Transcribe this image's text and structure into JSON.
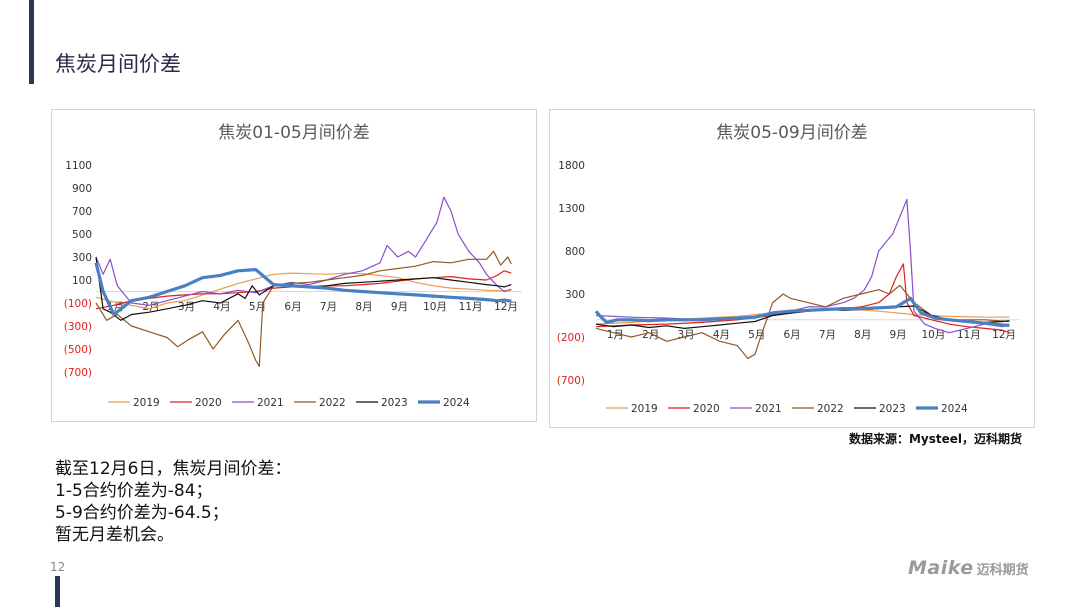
{
  "page": {
    "title": "焦炭月间价差",
    "source": "数据来源：Mysteel，迈科期货",
    "summary": [
      "截至12月6日，焦炭月间价差：",
      "1-5合约价差为-84；",
      "5-9合约价差为-64.5；",
      "暂无月差机会。"
    ],
    "page_number": "12",
    "logo_text": "Maike",
    "logo_cn": "迈科期货"
  },
  "chart_data": [
    {
      "type": "line",
      "title": "焦炭01-05月间价差",
      "x_tick_labels": [
        "1月",
        "2月",
        "3月",
        "4月",
        "5月",
        "6月",
        "7月",
        "8月",
        "9月",
        "10月",
        "11月",
        "12月"
      ],
      "y_ticks": [
        {
          "value": 1100,
          "label": "1100"
        },
        {
          "value": 900,
          "label": "900"
        },
        {
          "value": 700,
          "label": "700"
        },
        {
          "value": 500,
          "label": "500"
        },
        {
          "value": 300,
          "label": "300"
        },
        {
          "value": 100,
          "label": "100"
        },
        {
          "value": -100,
          "label": "(100)"
        },
        {
          "value": -300,
          "label": "(300)"
        },
        {
          "value": -500,
          "label": "(500)"
        },
        {
          "value": -700,
          "label": "(700)"
        }
      ],
      "ylim": [
        -700,
        1100
      ],
      "legend_position": "bottom",
      "series": [
        {
          "name": "2019",
          "color": "#ed9a4d",
          "width": 1.2,
          "x": [
            0,
            0.5,
            1,
            1.5,
            2,
            2.5,
            3,
            3.5,
            4,
            4.5,
            5,
            5.5,
            6,
            6.5,
            7,
            7.5,
            8,
            8.5,
            9,
            9.5,
            10,
            10.5,
            11,
            11.5,
            11.7
          ],
          "y": [
            -50,
            -90,
            -120,
            -150,
            -100,
            -80,
            -30,
            20,
            70,
            110,
            150,
            160,
            155,
            150,
            160,
            155,
            140,
            120,
            80,
            50,
            30,
            20,
            10,
            5,
            10
          ]
        },
        {
          "name": "2020",
          "color": "#e0201b",
          "width": 1.2,
          "x": [
            0,
            0.5,
            1,
            1.5,
            2,
            2.5,
            3,
            3.5,
            4,
            4.5,
            5,
            5.5,
            6,
            6.5,
            7,
            7.5,
            8,
            8.5,
            9,
            9.5,
            10,
            10.5,
            11,
            11.3,
            11.5,
            11.7
          ],
          "y": [
            -150,
            -120,
            -80,
            -60,
            -40,
            -30,
            -20,
            -20,
            -10,
            0,
            30,
            40,
            40,
            50,
            50,
            60,
            70,
            90,
            110,
            120,
            130,
            110,
            100,
            140,
            180,
            160
          ]
        },
        {
          "name": "2021",
          "color": "#8a4fc7",
          "width": 1.2,
          "x": [
            0,
            0.2,
            0.4,
            0.6,
            1,
            1.5,
            2,
            2.5,
            3,
            3.5,
            4,
            4.5,
            5,
            5.5,
            6,
            6.5,
            7,
            7.5,
            8,
            8.2,
            8.5,
            8.8,
            9,
            9.3,
            9.6,
            9.8,
            10,
            10.2,
            10.5,
            10.8,
            11,
            11.3,
            11.5,
            11.7
          ],
          "y": [
            300,
            150,
            280,
            50,
            -100,
            -120,
            -80,
            -40,
            0,
            -20,
            10,
            -10,
            50,
            80,
            60,
            100,
            150,
            180,
            250,
            400,
            300,
            350,
            300,
            450,
            600,
            820,
            700,
            500,
            350,
            250,
            150,
            50,
            0,
            20
          ]
        },
        {
          "name": "2022",
          "color": "#8f5b25",
          "width": 1.2,
          "x": [
            0,
            0.3,
            0.6,
            1,
            1.5,
            2,
            2.3,
            2.6,
            3,
            3.3,
            3.6,
            4,
            4.3,
            4.5,
            4.6,
            4.7,
            5,
            5.5,
            6,
            6.5,
            7,
            7.5,
            8,
            8.5,
            9,
            9.5,
            10,
            10.5,
            11,
            11.2,
            11.4,
            11.6,
            11.7
          ],
          "y": [
            -100,
            -250,
            -200,
            -300,
            -350,
            -400,
            -480,
            -420,
            -350,
            -500,
            -380,
            -250,
            -450,
            -600,
            -650,
            -100,
            50,
            70,
            80,
            100,
            120,
            140,
            180,
            200,
            220,
            260,
            250,
            280,
            280,
            350,
            230,
            300,
            240
          ]
        },
        {
          "name": "2023",
          "color": "#111111",
          "width": 1.2,
          "x": [
            0,
            0.2,
            0.4,
            0.7,
            1,
            1.5,
            2,
            2.5,
            3,
            3.5,
            4,
            4.2,
            4.4,
            4.6,
            5,
            5.5,
            6,
            6.5,
            7,
            7.5,
            8,
            8.5,
            9,
            9.5,
            10,
            10.5,
            11,
            11.3,
            11.5,
            11.7
          ],
          "y": [
            300,
            -150,
            -180,
            -250,
            -200,
            -180,
            -150,
            -120,
            -80,
            -100,
            -20,
            -60,
            50,
            -30,
            50,
            60,
            40,
            50,
            70,
            80,
            90,
            100,
            110,
            120,
            100,
            80,
            60,
            50,
            40,
            60
          ]
        },
        {
          "name": "2024",
          "color": "#4a7fc1",
          "width": 3.2,
          "x": [
            0,
            0.2,
            0.5,
            1,
            1.5,
            2,
            2.5,
            3,
            3.5,
            4,
            4.5,
            5,
            5.5,
            6,
            6.5,
            7,
            7.5,
            8,
            8.5,
            9,
            9.5,
            10,
            10.5,
            11,
            11.3,
            11.5,
            11.7
          ],
          "y": [
            250,
            0,
            -200,
            -80,
            -50,
            0,
            50,
            120,
            140,
            180,
            190,
            60,
            50,
            40,
            30,
            10,
            0,
            -10,
            -20,
            -30,
            -40,
            -50,
            -60,
            -70,
            -80,
            -75,
            -84
          ]
        }
      ]
    },
    {
      "type": "line",
      "title": "焦炭05-09月间价差",
      "x_tick_labels": [
        "1月",
        "2月",
        "3月",
        "4月",
        "5月",
        "6月",
        "7月",
        "8月",
        "9月",
        "10月",
        "11月",
        "12月"
      ],
      "y_ticks": [
        {
          "value": 1800,
          "label": "1800"
        },
        {
          "value": 1300,
          "label": "1300"
        },
        {
          "value": 800,
          "label": "800"
        },
        {
          "value": 300,
          "label": "300"
        },
        {
          "value": -200,
          "label": "(200)"
        },
        {
          "value": -700,
          "label": "(700)"
        }
      ],
      "ylim": [
        -700,
        1800
      ],
      "legend_position": "bottom",
      "series": [
        {
          "name": "2019",
          "color": "#ed9a4d",
          "width": 1.2,
          "x": [
            0,
            1,
            2,
            3,
            4,
            5,
            6,
            7,
            8,
            9,
            10,
            11,
            11.7
          ],
          "y": [
            -50,
            -30,
            0,
            20,
            40,
            80,
            120,
            130,
            100,
            60,
            40,
            30,
            30
          ]
        },
        {
          "name": "2020",
          "color": "#e0201b",
          "width": 1.2,
          "x": [
            0,
            1,
            2,
            3,
            4,
            5,
            6,
            7,
            7.5,
            8,
            8.3,
            8.5,
            8.7,
            8.8,
            9,
            9.5,
            10,
            10.5,
            11,
            11.5,
            11.7
          ],
          "y": [
            -80,
            -60,
            -50,
            -30,
            0,
            50,
            100,
            130,
            150,
            200,
            300,
            500,
            650,
            200,
            50,
            0,
            -50,
            -80,
            -100,
            -120,
            -150
          ]
        },
        {
          "name": "2021",
          "color": "#8a4fc7",
          "width": 1.2,
          "x": [
            0,
            1,
            2,
            3,
            4,
            5,
            5.5,
            6,
            6.5,
            7,
            7.3,
            7.6,
            7.8,
            8,
            8.2,
            8.4,
            8.6,
            8.8,
            8.9,
            9,
            9.3,
            9.6,
            10,
            10.5,
            11,
            11.5,
            11.7
          ],
          "y": [
            50,
            30,
            20,
            0,
            20,
            60,
            100,
            150,
            150,
            200,
            250,
            350,
            500,
            800,
            900,
            1000,
            1200,
            1400,
            800,
            100,
            -50,
            -100,
            -150,
            -100,
            -50,
            -80,
            -60
          ]
        },
        {
          "name": "2022",
          "color": "#8f5b25",
          "width": 1.2,
          "x": [
            0,
            0.5,
            1,
            1.5,
            2,
            2.5,
            3,
            3.5,
            4,
            4.3,
            4.5,
            4.7,
            5,
            5.3,
            5.5,
            6,
            6.5,
            7,
            7.5,
            8,
            8.3,
            8.6,
            9,
            9.5,
            10,
            11,
            11.7
          ],
          "y": [
            -100,
            -150,
            -200,
            -150,
            -250,
            -200,
            -150,
            -250,
            -300,
            -450,
            -400,
            -150,
            200,
            300,
            250,
            200,
            150,
            250,
            300,
            350,
            300,
            400,
            200,
            50,
            0,
            0,
            -20
          ]
        },
        {
          "name": "2023",
          "color": "#111111",
          "width": 1.2,
          "x": [
            0,
            0.5,
            1,
            1.5,
            2,
            2.5,
            3,
            3.5,
            4,
            4.5,
            5,
            5.5,
            6,
            6.5,
            7,
            7.5,
            8,
            8.5,
            9,
            9.5,
            10,
            10.5,
            11,
            11.5,
            11.7
          ],
          "y": [
            -50,
            -80,
            -60,
            -90,
            -70,
            -100,
            -80,
            -60,
            -40,
            -20,
            50,
            80,
            100,
            120,
            110,
            120,
            130,
            150,
            160,
            50,
            0,
            -20,
            -30,
            -20,
            -10
          ]
        },
        {
          "name": "2024",
          "color": "#4a7fc1",
          "width": 3.2,
          "x": [
            0,
            0.1,
            0.3,
            0.6,
            1,
            1.5,
            2,
            2.5,
            3,
            3.5,
            4,
            4.5,
            5,
            5.5,
            6,
            6.5,
            7,
            7.5,
            8,
            8.5,
            8.7,
            8.9,
            9.2,
            9.6,
            10,
            10.5,
            11,
            11.5,
            11.7
          ],
          "y": [
            100,
            50,
            -30,
            0,
            0,
            -10,
            0,
            0,
            0,
            10,
            20,
            30,
            80,
            100,
            110,
            120,
            130,
            130,
            140,
            150,
            200,
            250,
            80,
            20,
            0,
            -20,
            -40,
            -60,
            -64.5
          ]
        }
      ]
    }
  ]
}
